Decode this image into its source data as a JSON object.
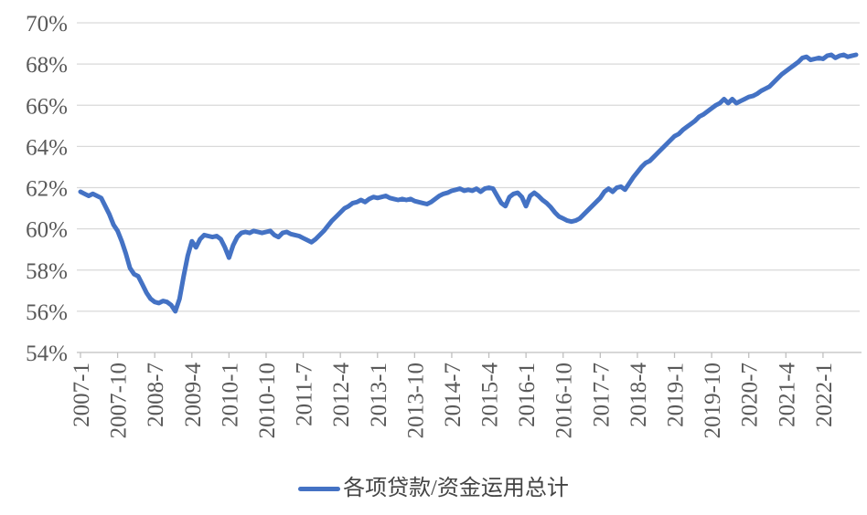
{
  "chart_data": {
    "type": "line",
    "title": "",
    "xlabel": "",
    "ylabel": "",
    "ylim": [
      54,
      70
    ],
    "grid": "horizontal",
    "legend_position": "bottom-center",
    "colors": {
      "series_line": "#4472C4",
      "gridline": "#D9D9D9",
      "axis_line": "#BFBFBF",
      "tick_label": "#595959",
      "legend_text": "#444444",
      "background": "#FFFFFF"
    },
    "y_tick_labels": [
      "70%",
      "68%",
      "66%",
      "64%",
      "62%",
      "60%",
      "58%",
      "56%",
      "54%"
    ],
    "x_tick_labels": [
      "2007-1",
      "2007-10",
      "2008-7",
      "2009-4",
      "2010-1",
      "2010-10",
      "2011-7",
      "2012-4",
      "2013-1",
      "2013-10",
      "2014-7",
      "2015-4",
      "2016-1",
      "2016-10",
      "2017-7",
      "2018-4",
      "2019-1",
      "2019-10",
      "2020-7",
      "2021-4",
      "2022-1"
    ],
    "x_tick_interval_months": 9,
    "series": [
      {
        "name": "各项贷款/资金运用总计",
        "start": "2007-1",
        "frequency": "monthly",
        "unit": "%",
        "values": [
          61.8,
          61.7,
          61.6,
          61.7,
          61.6,
          61.5,
          61.1,
          60.7,
          60.2,
          59.9,
          59.4,
          58.8,
          58.1,
          57.8,
          57.7,
          57.3,
          56.9,
          56.6,
          56.45,
          56.4,
          56.5,
          56.45,
          56.3,
          56.0,
          56.6,
          57.7,
          58.7,
          59.4,
          59.1,
          59.5,
          59.7,
          59.65,
          59.6,
          59.65,
          59.5,
          59.1,
          58.6,
          59.2,
          59.6,
          59.8,
          59.85,
          59.8,
          59.9,
          59.85,
          59.8,
          59.85,
          59.9,
          59.7,
          59.6,
          59.8,
          59.85,
          59.75,
          59.7,
          59.65,
          59.55,
          59.45,
          59.35,
          59.5,
          59.7,
          59.9,
          60.15,
          60.4,
          60.6,
          60.8,
          61.0,
          61.1,
          61.25,
          61.3,
          61.4,
          61.3,
          61.45,
          61.55,
          61.5,
          61.55,
          61.6,
          61.5,
          61.45,
          61.4,
          61.45,
          61.4,
          61.45,
          61.35,
          61.3,
          61.25,
          61.2,
          61.3,
          61.45,
          61.6,
          61.7,
          61.75,
          61.85,
          61.9,
          61.95,
          61.85,
          61.9,
          61.85,
          61.95,
          61.8,
          61.95,
          62.0,
          61.95,
          61.6,
          61.25,
          61.1,
          61.55,
          61.7,
          61.75,
          61.55,
          61.1,
          61.6,
          61.75,
          61.6,
          61.4,
          61.25,
          61.05,
          60.8,
          60.6,
          60.5,
          60.4,
          60.35,
          60.4,
          60.5,
          60.7,
          60.9,
          61.1,
          61.3,
          61.5,
          61.8,
          61.95,
          61.8,
          62.0,
          62.05,
          61.9,
          62.2,
          62.5,
          62.75,
          63.0,
          63.2,
          63.3,
          63.5,
          63.7,
          63.9,
          64.1,
          64.3,
          64.5,
          64.6,
          64.8,
          64.95,
          65.1,
          65.25,
          65.45,
          65.55,
          65.7,
          65.85,
          66.0,
          66.1,
          66.3,
          66.1,
          66.3,
          66.1,
          66.2,
          66.3,
          66.4,
          66.45,
          66.55,
          66.7,
          66.8,
          66.9,
          67.1,
          67.3,
          67.5,
          67.65,
          67.8,
          67.95,
          68.1,
          68.3,
          68.35,
          68.2,
          68.25,
          68.3,
          68.25,
          68.4,
          68.45,
          68.3,
          68.4,
          68.45,
          68.35,
          68.4,
          68.45
        ]
      }
    ]
  },
  "legend": {
    "label": "各项贷款/资金运用总计"
  }
}
